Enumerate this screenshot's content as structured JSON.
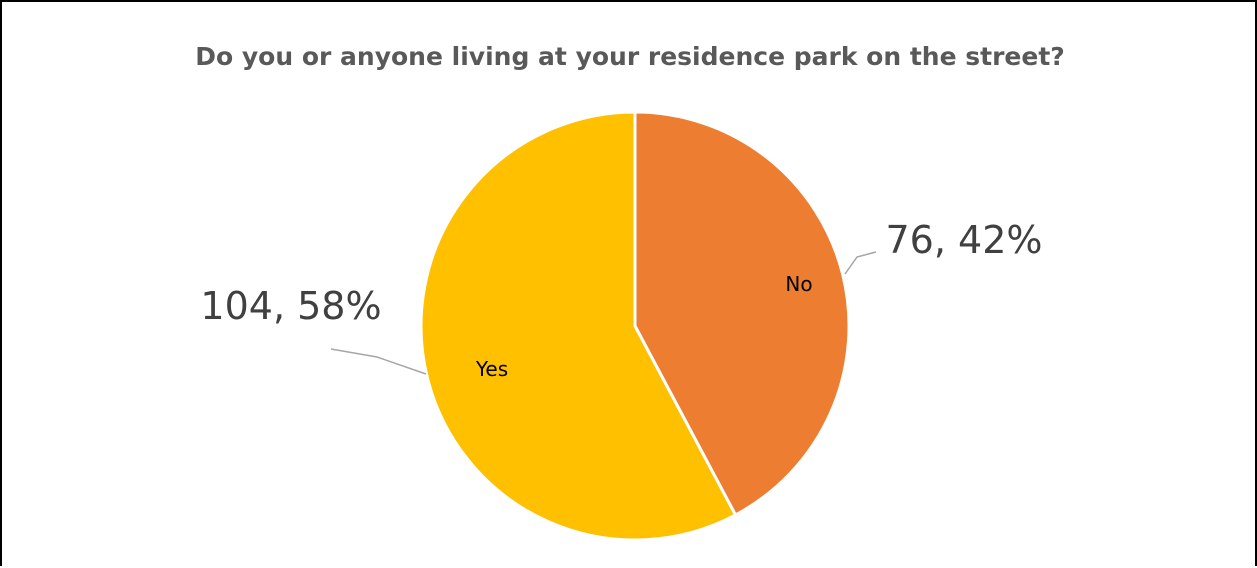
{
  "chart_data": {
    "type": "pie",
    "title": "Do you or anyone living at your residence park on the street?",
    "categories": [
      "No",
      "Yes"
    ],
    "values": [
      76,
      104
    ],
    "percentages": [
      "42%",
      "58%"
    ],
    "data_labels": [
      "76, 42%",
      "104, 58%"
    ],
    "colors": [
      "#ED7D31",
      "#FFC000"
    ],
    "start_angle_deg": 0,
    "direction": "clockwise"
  }
}
